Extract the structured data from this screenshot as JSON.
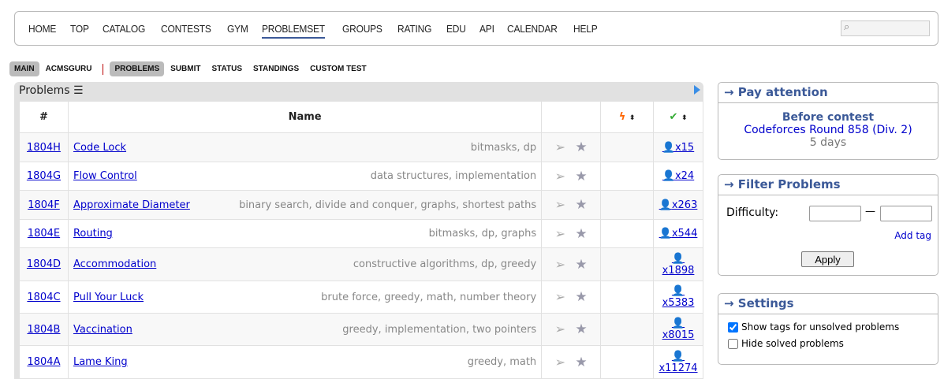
{
  "nav": {
    "items": [
      "HOME",
      "TOP",
      "CATALOG",
      "CONTESTS",
      "GYM",
      "PROBLEMSET",
      "GROUPS",
      "RATING",
      "EDU",
      "API",
      "CALENDAR",
      "HELP"
    ],
    "active": "PROBLEMSET",
    "search_placeholder": ""
  },
  "submenu": {
    "left": [
      "MAIN",
      "ACMSGURU"
    ],
    "right": [
      "PROBLEMS",
      "SUBMIT",
      "STATUS",
      "STANDINGS",
      "CUSTOM TEST"
    ]
  },
  "problems": {
    "title": "Problems",
    "headers": {
      "id": "#",
      "name": "Name"
    },
    "rows": [
      {
        "id": "1804H",
        "name": "Code Lock",
        "tags": "bitmasks, dp",
        "solved": "x15"
      },
      {
        "id": "1804G",
        "name": "Flow Control",
        "tags": "data structures, implementation",
        "solved": "x24"
      },
      {
        "id": "1804F",
        "name": "Approximate Diameter",
        "tags": "binary search, divide and conquer, graphs, shortest paths",
        "solved": "x263"
      },
      {
        "id": "1804E",
        "name": "Routing",
        "tags": "bitmasks, dp, graphs",
        "solved": "x544"
      },
      {
        "id": "1804D",
        "name": "Accommodation",
        "tags": "constructive algorithms, dp, greedy",
        "solved": "x1898"
      },
      {
        "id": "1804C",
        "name": "Pull Your Luck",
        "tags": "brute force, greedy, math, number theory",
        "solved": "x5383"
      },
      {
        "id": "1804B",
        "name": "Vaccination",
        "tags": "greedy, implementation, two pointers",
        "solved": "x8015"
      },
      {
        "id": "1804A",
        "name": "Lame King",
        "tags": "greedy, math",
        "solved": "x11274"
      }
    ]
  },
  "pay": {
    "title": "→ Pay attention",
    "subtitle": "Before contest",
    "contest": "Codeforces Round 858 (Div. 2)",
    "time": "5 days"
  },
  "filter": {
    "title": "→ Filter Problems",
    "difficulty": "Difficulty:",
    "dash": "—",
    "add_tag": "Add tag",
    "apply": "Apply"
  },
  "settings": {
    "title": "→ Settings",
    "show_tags": "Show tags for unsolved problems",
    "show_tags_checked": true,
    "hide_solved": "Hide solved problems",
    "hide_solved_checked": false
  }
}
